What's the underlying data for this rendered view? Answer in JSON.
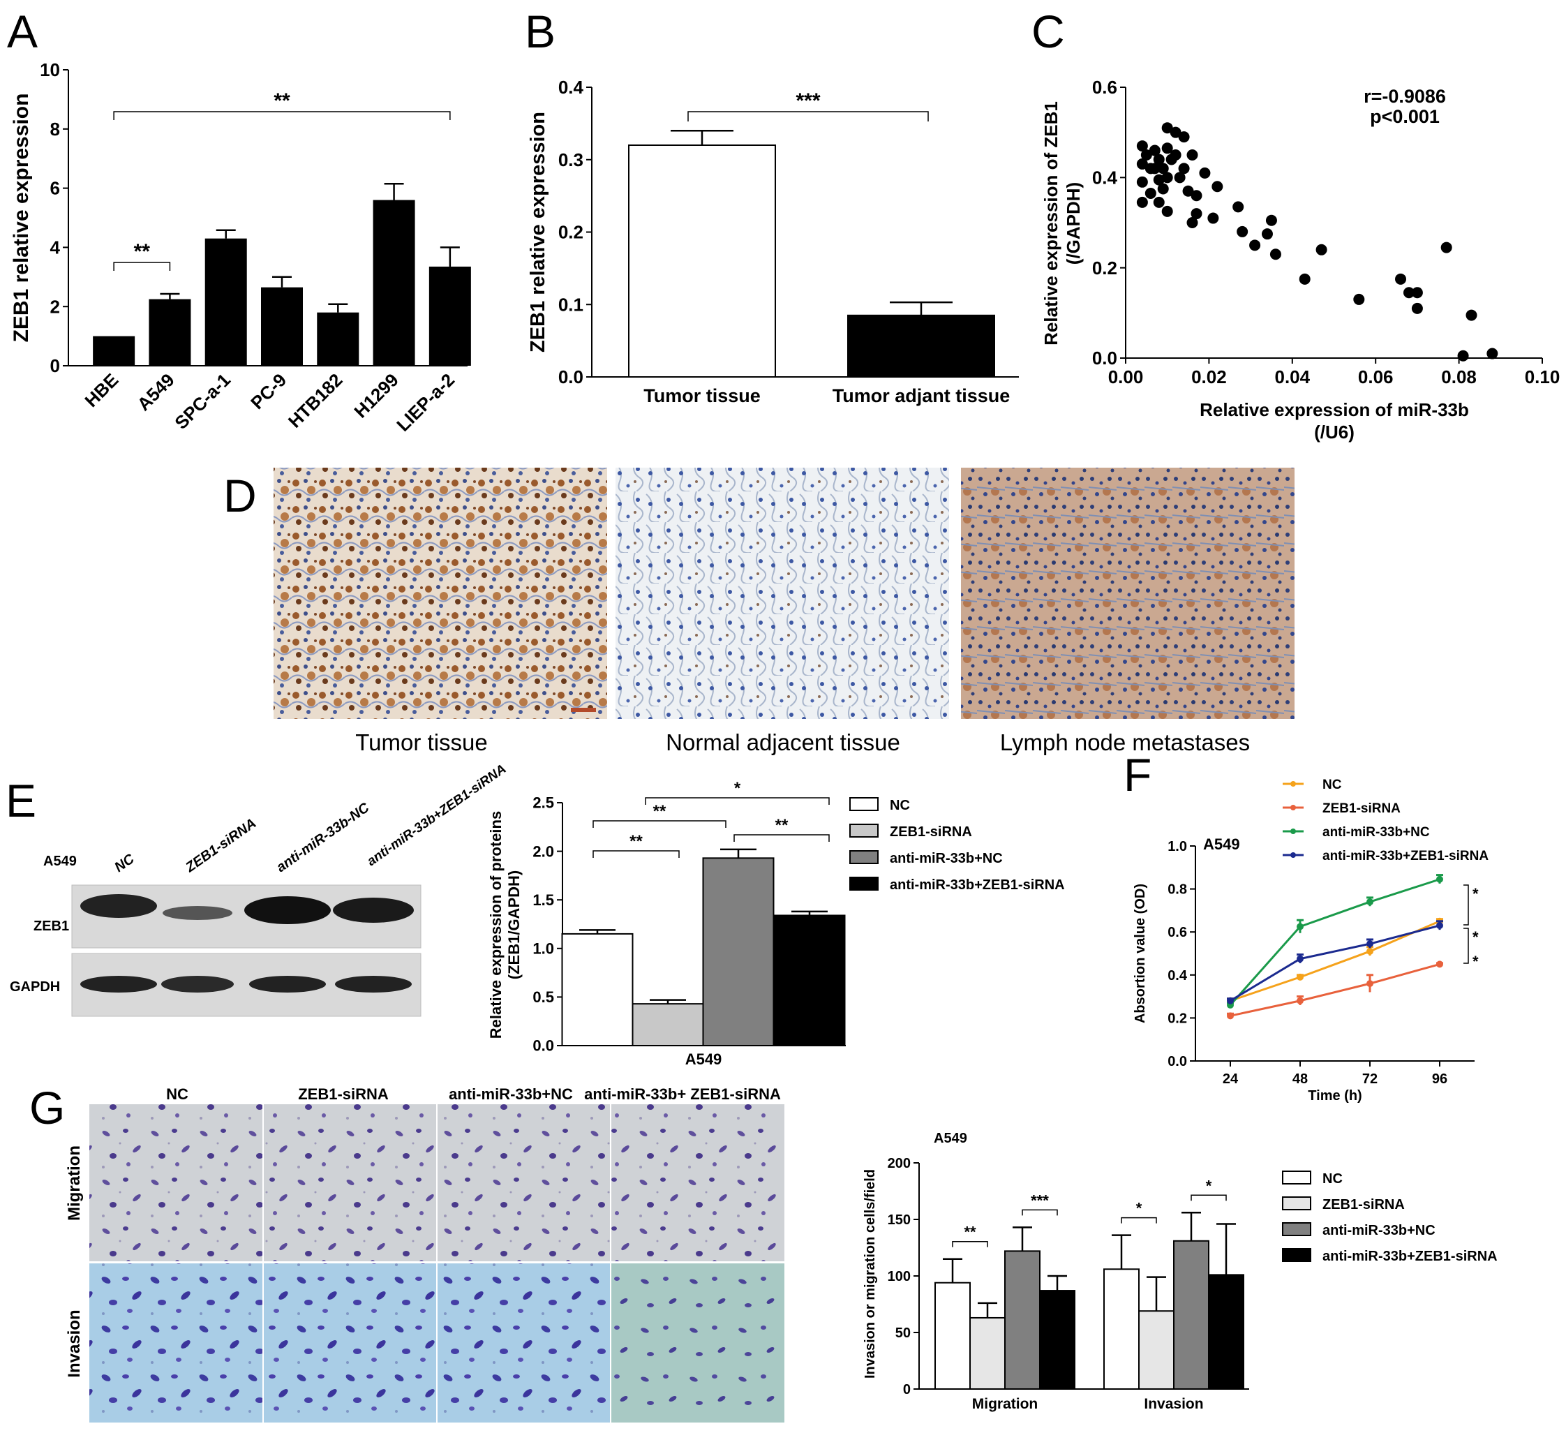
{
  "panels": [
    "A",
    "B",
    "C",
    "D",
    "E",
    "F",
    "G"
  ],
  "chart_data": [
    {
      "id": "A",
      "type": "bar",
      "categories": [
        "HBE",
        "A549",
        "SPC-a-1",
        "PC-9",
        "HTB182",
        "H1299",
        "LIEP-a-2"
      ],
      "values": [
        1.0,
        2.25,
        4.3,
        2.65,
        1.8,
        5.6,
        3.35
      ],
      "errors": [
        0.0,
        0.18,
        0.28,
        0.35,
        0.28,
        0.55,
        0.65
      ],
      "ylabel": "ZEB1 relative expression",
      "ylim": [
        0,
        10
      ],
      "yticks": [
        "0",
        "2",
        "4",
        "6",
        "8",
        "10"
      ],
      "yticks_values": [
        0,
        2,
        4,
        6,
        8,
        10
      ],
      "annotations": [
        {
          "text": "**",
          "from": "HBE",
          "to": "A549"
        },
        {
          "text": "**",
          "from": "HBE",
          "to": "LIEP-a-2"
        }
      ],
      "colors": {
        "bar": "#000000"
      }
    },
    {
      "id": "B",
      "type": "bar",
      "categories": [
        "Tumor tissue",
        "Tumor adjant tissue"
      ],
      "values": [
        0.32,
        0.085
      ],
      "errors": [
        0.02,
        0.018
      ],
      "ylabel": "ZEB1 relative expression",
      "ylim": [
        0,
        0.4
      ],
      "yticks": [
        "0.0",
        "0.1",
        "0.2",
        "0.3",
        "0.4"
      ],
      "yticks_values": [
        0,
        0.1,
        0.2,
        0.3,
        0.4
      ],
      "annotations": [
        {
          "text": "***",
          "from": "Tumor tissue",
          "to": "Tumor adjant tissue"
        }
      ],
      "colors": {
        "bar1": "#ffffff",
        "bar2": "#000000"
      }
    },
    {
      "id": "C",
      "type": "scatter",
      "xlabel": "Relative expression of miR-33b",
      "xlabel2": "(/U6)",
      "ylabel": "Relative expression of ZEB1",
      "ylabel2": "(/GAPDH)",
      "xlim": [
        0,
        0.1
      ],
      "ylim": [
        0,
        0.6
      ],
      "xticks": [
        "0.00",
        "0.02",
        "0.04",
        "0.06",
        "0.08",
        "0.10"
      ],
      "xticks_values": [
        0,
        0.02,
        0.04,
        0.06,
        0.08,
        0.1
      ],
      "yticks": [
        "0.0",
        "0.2",
        "0.4",
        "0.6"
      ],
      "yticks_values": [
        0,
        0.2,
        0.4,
        0.6
      ],
      "stat_r": "r=-0.9086",
      "stat_p": "p<0.001",
      "points": [
        [
          0.004,
          0.47
        ],
        [
          0.004,
          0.43
        ],
        [
          0.004,
          0.39
        ],
        [
          0.004,
          0.345
        ],
        [
          0.005,
          0.45
        ],
        [
          0.006,
          0.42
        ],
        [
          0.006,
          0.365
        ],
        [
          0.007,
          0.46
        ],
        [
          0.007,
          0.42
        ],
        [
          0.008,
          0.44
        ],
        [
          0.008,
          0.395
        ],
        [
          0.008,
          0.345
        ],
        [
          0.009,
          0.42
        ],
        [
          0.009,
          0.375
        ],
        [
          0.01,
          0.51
        ],
        [
          0.01,
          0.465
        ],
        [
          0.01,
          0.4
        ],
        [
          0.01,
          0.325
        ],
        [
          0.011,
          0.44
        ],
        [
          0.012,
          0.5
        ],
        [
          0.012,
          0.45
        ],
        [
          0.013,
          0.4
        ],
        [
          0.014,
          0.49
        ],
        [
          0.014,
          0.42
        ],
        [
          0.015,
          0.37
        ],
        [
          0.016,
          0.3
        ],
        [
          0.016,
          0.45
        ],
        [
          0.017,
          0.36
        ],
        [
          0.017,
          0.32
        ],
        [
          0.019,
          0.41
        ],
        [
          0.021,
          0.31
        ],
        [
          0.022,
          0.38
        ],
        [
          0.027,
          0.335
        ],
        [
          0.028,
          0.28
        ],
        [
          0.031,
          0.25
        ],
        [
          0.034,
          0.275
        ],
        [
          0.035,
          0.305
        ],
        [
          0.036,
          0.23
        ],
        [
          0.043,
          0.175
        ],
        [
          0.047,
          0.24
        ],
        [
          0.056,
          0.13
        ],
        [
          0.066,
          0.175
        ],
        [
          0.068,
          0.145
        ],
        [
          0.07,
          0.145
        ],
        [
          0.07,
          0.11
        ],
        [
          0.077,
          0.245
        ],
        [
          0.081,
          0.005
        ],
        [
          0.083,
          0.095
        ],
        [
          0.088,
          0.01
        ]
      ]
    },
    {
      "id": "E",
      "type": "bar",
      "categories": [
        "A549"
      ],
      "series": [
        {
          "name": "NC",
          "values": [
            1.15
          ],
          "errors": [
            0.04
          ],
          "color": "#ffffff"
        },
        {
          "name": "ZEB1-siRNA",
          "values": [
            0.43
          ],
          "errors": [
            0.04
          ],
          "color": "#c8c8c8"
        },
        {
          "name": "anti-miR-33b+NC",
          "values": [
            1.93
          ],
          "errors": [
            0.09
          ],
          "color": "#808080"
        },
        {
          "name": "anti-miR-33b+ZEB1-siRNA",
          "values": [
            1.34
          ],
          "errors": [
            0.04
          ],
          "color": "#000000"
        }
      ],
      "ylabel": "Relative expression of proteins",
      "ylabel2": "(ZEB1/GAPDH)",
      "xlabel": "A549",
      "ylim": [
        0,
        2.5
      ],
      "yticks": [
        "0.0",
        "0.5",
        "1.0",
        "1.5",
        "2.0",
        "2.5"
      ],
      "yticks_values": [
        0,
        0.5,
        1,
        1.5,
        2,
        2.5
      ],
      "annotations": [
        {
          "text": "*",
          "from": 1,
          "to": 3
        },
        {
          "text": "**",
          "from": 0,
          "to": 2
        },
        {
          "text": "**",
          "from": 0,
          "to": 1
        },
        {
          "text": "**",
          "from": 2,
          "to": 3
        }
      ],
      "legend": "right"
    },
    {
      "id": "F",
      "type": "line",
      "title": "A549",
      "x": [
        24,
        48,
        72,
        96
      ],
      "series": [
        {
          "name": "NC",
          "values": [
            0.28,
            0.39,
            0.51,
            0.65
          ],
          "errors": [
            0.01,
            0.01,
            0.02,
            0.01
          ],
          "color": "#f5a21b"
        },
        {
          "name": "ZEB1-siRNA",
          "values": [
            0.21,
            0.28,
            0.36,
            0.45
          ],
          "errors": [
            0.01,
            0.02,
            0.04,
            0.005
          ],
          "color": "#e8613c"
        },
        {
          "name": "anti-miR-33b+NC",
          "values": [
            0.26,
            0.625,
            0.74,
            0.845
          ],
          "errors": [
            0.01,
            0.03,
            0.02,
            0.02
          ],
          "color": "#1a9a4a"
        },
        {
          "name": "anti-miR-33b+ZEB1-siRNA",
          "values": [
            0.28,
            0.475,
            0.545,
            0.63
          ],
          "errors": [
            0.01,
            0.02,
            0.02,
            0.02
          ],
          "color": "#1b2a8f"
        }
      ],
      "xlabel": "Time (h)",
      "ylabel": "Absortion value (OD)",
      "xlim": [
        12,
        108
      ],
      "ylim": [
        0,
        1.0
      ],
      "xticks": [
        "24",
        "48",
        "72",
        "96"
      ],
      "yticks": [
        "0.0",
        "0.2",
        "0.4",
        "0.6",
        "0.8",
        "1.0"
      ],
      "yticks_values": [
        0,
        0.2,
        0.4,
        0.6,
        0.8,
        1.0
      ],
      "marks": [
        "*",
        "*",
        "*"
      ],
      "legend": "top"
    },
    {
      "id": "G",
      "type": "bar",
      "title": "A549",
      "categories": [
        "Migration",
        "Invasion"
      ],
      "series": [
        {
          "name": "NC",
          "values": [
            94,
            106
          ],
          "errors": [
            21,
            30
          ],
          "color": "#ffffff"
        },
        {
          "name": "ZEB1-siRNA",
          "values": [
            63,
            69
          ],
          "errors": [
            13,
            30
          ],
          "color": "#e6e6e6"
        },
        {
          "name": "anti-miR-33b+NC",
          "values": [
            122,
            131
          ],
          "errors": [
            21,
            25
          ],
          "color": "#808080"
        },
        {
          "name": "anti-miR-33b+ZEB1-siRNA",
          "values": [
            87,
            101
          ],
          "errors": [
            13,
            45
          ],
          "color": "#000000"
        }
      ],
      "ylabel": "Invasion or migration cells/field",
      "ylim": [
        0,
        200
      ],
      "yticks": [
        "0",
        "50",
        "100",
        "150",
        "200"
      ],
      "yticks_values": [
        0,
        50,
        100,
        150,
        200
      ],
      "annotations": [
        {
          "text": "**",
          "category": 0,
          "from": 0,
          "to": 1
        },
        {
          "text": "***",
          "category": 0,
          "from": 2,
          "to": 3
        },
        {
          "text": "*",
          "category": 1,
          "from": 0,
          "to": 1
        },
        {
          "text": "*",
          "category": 1,
          "from": 2,
          "to": 3
        }
      ],
      "legend": "right"
    }
  ],
  "panel_d": {
    "captions": [
      "Tumor tissue",
      "Normal adjacent tissue",
      "Lymph node metastases"
    ]
  },
  "panel_e_blot": {
    "cell_line": "A549",
    "lanes": [
      "NC",
      "ZEB1-siRNA",
      "anti-miR-33b-NC",
      "anti-miR-33b+ZEB1-siRNA"
    ],
    "rows": [
      "ZEB1",
      "GAPDH"
    ]
  },
  "panel_g_images": {
    "columns": [
      "NC",
      "ZEB1-siRNA",
      "anti-miR-33b+NC",
      "anti-miR-33b+ ZEB1-siRNA"
    ],
    "rows": [
      "Migration",
      "Invasion"
    ]
  }
}
